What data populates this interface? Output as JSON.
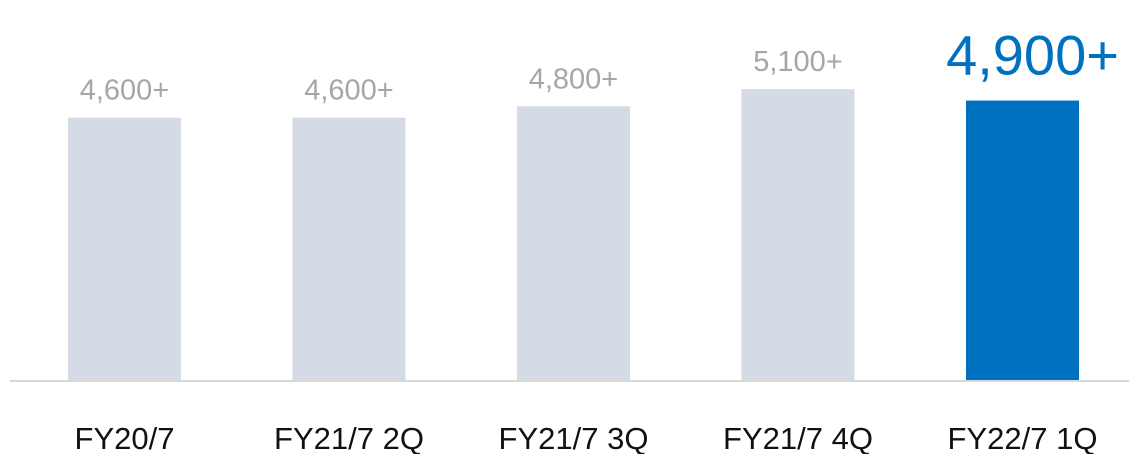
{
  "chart_data": {
    "type": "bar",
    "categories": [
      "FY20/7",
      "FY21/7 2Q",
      "FY21/7 3Q",
      "FY21/7 4Q",
      "FY22/7 1Q"
    ],
    "values": [
      4600,
      4600,
      4800,
      5100,
      4900
    ],
    "value_labels": [
      "4,600+",
      "4,600+",
      "4,800+",
      "5,100+",
      "4,900+"
    ],
    "colors": [
      "#d5dae7",
      "#d5dae7",
      "#d5dae7",
      "#d5dae7",
      "#0070c0"
    ],
    "label_colors": [
      "#a6a6a6",
      "#a6a6a6",
      "#a6a6a6",
      "#a6a6a6",
      "#0070c0"
    ],
    "ylim": [
      0,
      6400
    ]
  }
}
